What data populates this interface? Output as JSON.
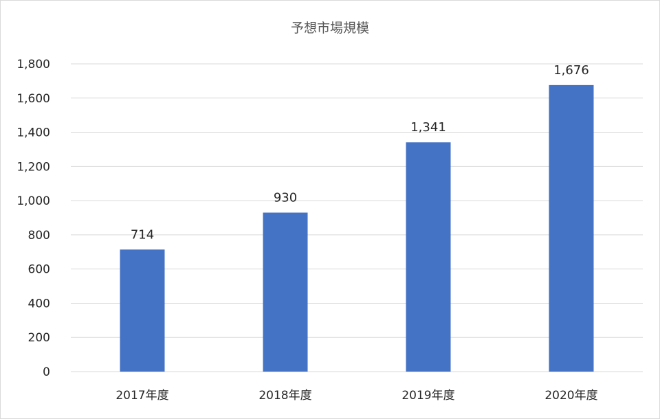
{
  "chart_data": {
    "type": "bar",
    "title": "予想市場規模",
    "xlabel": "",
    "ylabel": "",
    "categories": [
      "2017年度",
      "2018年度",
      "2019年度",
      "2020年度"
    ],
    "values": [
      714,
      930,
      1341,
      1676
    ],
    "data_labels": [
      "714",
      "930",
      "1,341",
      "1,676"
    ],
    "ylim": [
      0,
      1800
    ],
    "y_ticks": [
      0,
      200,
      400,
      600,
      800,
      1000,
      1200,
      1400,
      1600,
      1800
    ],
    "y_tick_labels": [
      "0",
      "200",
      "400",
      "600",
      "800",
      "1,000",
      "1,200",
      "1,400",
      "1,600",
      "1,800"
    ],
    "grid": true,
    "legend": "none",
    "bar_color": "#4472c4",
    "grid_color": "#d9d9d9"
  }
}
